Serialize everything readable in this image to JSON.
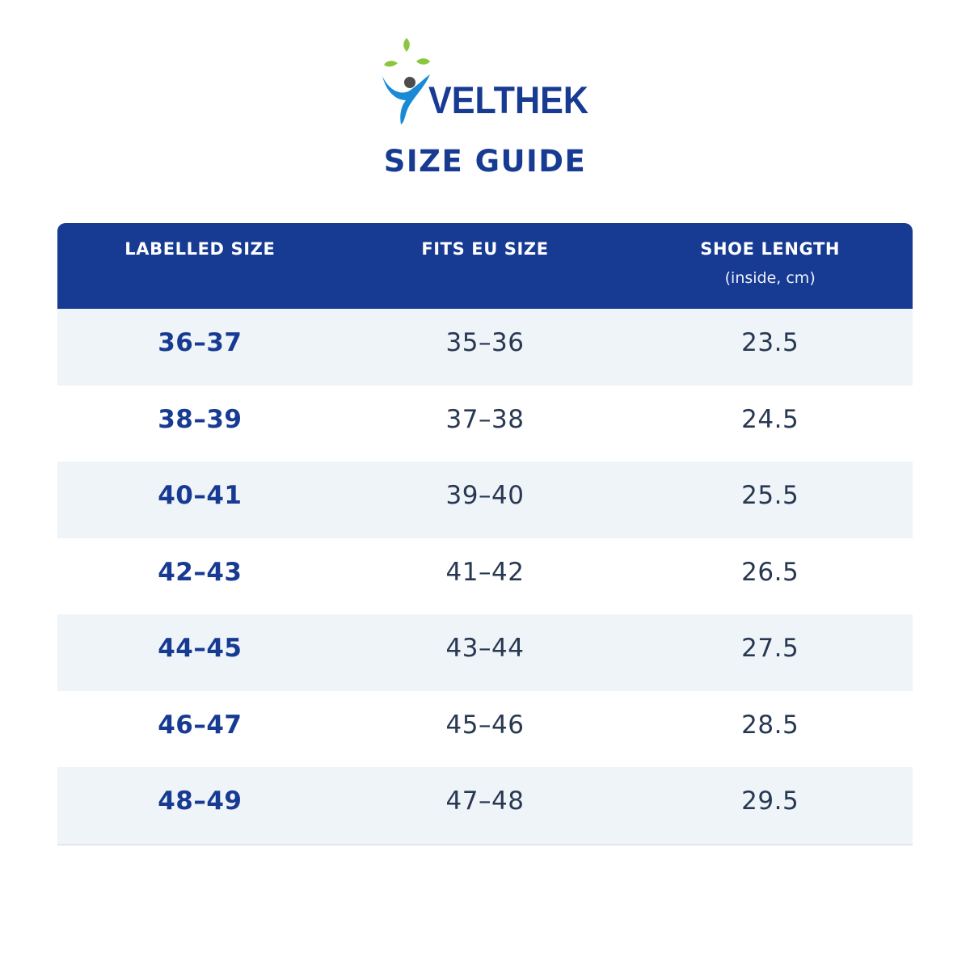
{
  "brand": {
    "name": "VELTHEK",
    "colors": {
      "navy": "#173a92",
      "blue": "#1a8ad4",
      "leaf_green": "#8cc63f",
      "head_gray": "#4d4d4d"
    }
  },
  "page_title": "SIZE GUIDE",
  "table": {
    "headers": [
      {
        "label": "LABELLED SIZE",
        "sub": ""
      },
      {
        "label": "FITS EU SIZE",
        "sub": ""
      },
      {
        "label": "SHOE LENGTH",
        "sub": "(inside, cm)"
      }
    ],
    "rows": [
      {
        "labelled": "36–37",
        "eu": "35–36",
        "length": "23.5"
      },
      {
        "labelled": "38–39",
        "eu": "37–38",
        "length": "24.5"
      },
      {
        "labelled": "40–41",
        "eu": "39–40",
        "length": "25.5"
      },
      {
        "labelled": "42–43",
        "eu": "41–42",
        "length": "26.5"
      },
      {
        "labelled": "44–45",
        "eu": "43–44",
        "length": "27.5"
      },
      {
        "labelled": "46–47",
        "eu": "45–46",
        "length": "28.5"
      },
      {
        "labelled": "48–49",
        "eu": "47–48",
        "length": "29.5"
      }
    ],
    "colors": {
      "header_bg": "#173a92",
      "row_shaded": "#eff4f9",
      "row_plain": "#ffffff",
      "size_text": "#173a92",
      "value_text": "#283852"
    }
  }
}
